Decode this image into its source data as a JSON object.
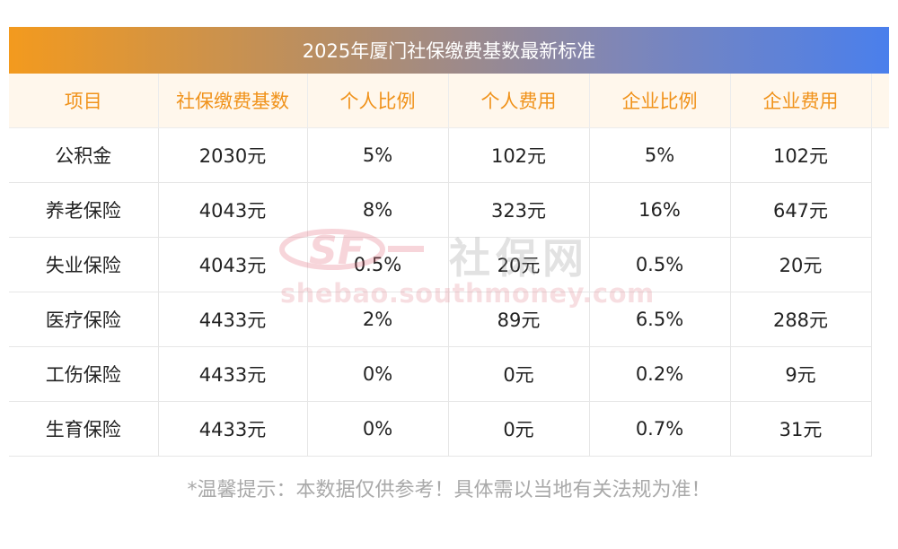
{
  "title": "2025年厦门社保缴费基数最新标准",
  "table": {
    "headers": [
      "项目",
      "社保缴费基数",
      "个人比例",
      "个人费用",
      "企业比例",
      "企业费用"
    ],
    "rows": [
      [
        "公积金",
        "2030元",
        "5%",
        "102元",
        "5%",
        "102元"
      ],
      [
        "养老保险",
        "4043元",
        "8%",
        "323元",
        "16%",
        "647元"
      ],
      [
        "失业保险",
        "4043元",
        "0.5%",
        "20元",
        "0.5%",
        "20元"
      ],
      [
        "医疗保险",
        "4433元",
        "2%",
        "89元",
        "6.5%",
        "288元"
      ],
      [
        "工伤保险",
        "4433元",
        "0%",
        "0元",
        "0.2%",
        "9元"
      ],
      [
        "生育保险",
        "4433元",
        "0%",
        "0元",
        "0.7%",
        "31元"
      ]
    ]
  },
  "watermark": {
    "logo_text": "SF",
    "site_name": "社保网",
    "url": "shebao.southmoney.com"
  },
  "note": "*温馨提示：本数据仅供参考！具体需以当地有关法规为准！",
  "colors": {
    "header_text": "#f0921a",
    "header_bg": "#fff7ec",
    "title_gradient_start": "#f39a1e",
    "title_gradient_end": "#4a7fec",
    "note_text": "#a9a9a9"
  }
}
